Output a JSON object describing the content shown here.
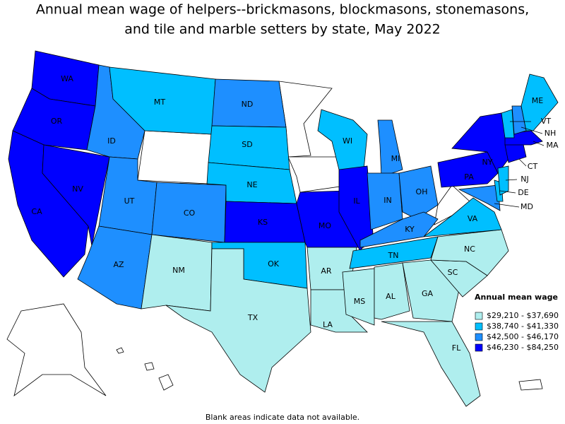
{
  "title": [
    "Annual mean wage of helpers--brickmasons, blockmasons, stonemasons,",
    "and tile and marble setters by state, May 2022"
  ],
  "states": [
    {
      "name": "WA",
      "color": "#0000ff"
    },
    {
      "name": "OR",
      "color": "#0000ff"
    },
    {
      "name": "CA",
      "color": "#0000ff"
    },
    {
      "name": "NV",
      "color": "#0000ff"
    },
    {
      "name": "ID",
      "color": "#1e8fff"
    },
    {
      "name": "MT",
      "color": "#00bfff"
    },
    {
      "name": "UT",
      "color": "#1e8fff"
    },
    {
      "name": "AZ",
      "color": "#1e8fff"
    },
    {
      "name": "CO",
      "color": "#1e8fff"
    },
    {
      "name": "NM",
      "color": "#afeeee"
    },
    {
      "name": "ND",
      "color": "#1e8fff"
    },
    {
      "name": "SD",
      "color": "#00bfff"
    },
    {
      "name": "NE",
      "color": "#00bfff"
    },
    {
      "name": "KS",
      "color": "#0000ff"
    },
    {
      "name": "OK",
      "color": "#00bfff"
    },
    {
      "name": "TX",
      "color": "#afeeee"
    },
    {
      "name": "MO",
      "color": "#0000ff"
    },
    {
      "name": "AR",
      "color": "#afeeee"
    },
    {
      "name": "LA",
      "color": "#afeeee"
    },
    {
      "name": "WI",
      "color": "#00bfff"
    },
    {
      "name": "IL",
      "color": "#0000ff"
    },
    {
      "name": "MI",
      "color": "#1e8fff"
    },
    {
      "name": "IN",
      "color": "#1e8fff"
    },
    {
      "name": "OH",
      "color": "#1e8fff"
    },
    {
      "name": "KY",
      "color": "#1e8fff"
    },
    {
      "name": "TN",
      "color": "#00bfff"
    },
    {
      "name": "MS",
      "color": "#afeeee"
    },
    {
      "name": "AL",
      "color": "#afeeee"
    },
    {
      "name": "GA",
      "color": "#afeeee"
    },
    {
      "name": "FL",
      "color": "#afeeee"
    },
    {
      "name": "SC",
      "color": "#afeeee"
    },
    {
      "name": "NC",
      "color": "#afeeee"
    },
    {
      "name": "VA",
      "color": "#00bfff"
    },
    {
      "name": "PA",
      "color": "#0000ff"
    },
    {
      "name": "NY",
      "color": "#0000ff"
    },
    {
      "name": "MD",
      "color": "#1e8fff"
    },
    {
      "name": "DE",
      "color": "#00bfff"
    },
    {
      "name": "NJ",
      "color": "#00bfff"
    },
    {
      "name": "CT",
      "color": "#0000ff"
    },
    {
      "name": "MA",
      "color": "#0000ff"
    },
    {
      "name": "VT",
      "color": "#00bfff"
    },
    {
      "name": "NH",
      "color": "#1e8fff"
    },
    {
      "name": "ME",
      "color": "#00bfff"
    }
  ],
  "legend": {
    "title": "Annual mean wage",
    "items": [
      {
        "label": "$29,210 - $37,690",
        "color": "#afeeee"
      },
      {
        "label": "$38,740 - $41,330",
        "color": "#00bfff"
      },
      {
        "label": "$42,500 - $46,170",
        "color": "#1e8fff"
      },
      {
        "label": "$46,230 - $84,250",
        "color": "#0000ff"
      }
    ]
  },
  "footnote": "Blank areas indicate data not available."
}
